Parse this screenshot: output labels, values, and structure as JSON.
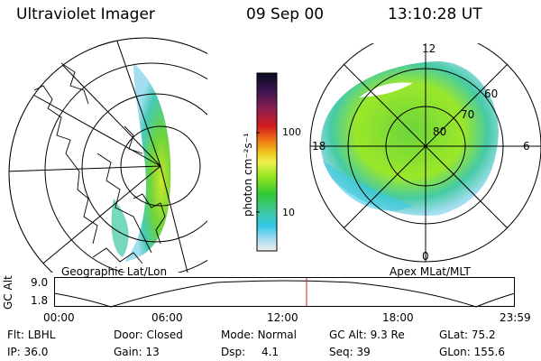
{
  "header": {
    "title": "Ultraviolet Imager",
    "date": "09 Sep 00",
    "time": "13:10:28 UT"
  },
  "colorbar": {
    "unit_label": "photon cm⁻²s⁻¹",
    "ticks": [
      "100",
      "10"
    ],
    "colors": [
      "#0a0a1e",
      "#3c1450",
      "#8c1e50",
      "#d21e1e",
      "#f07814",
      "#f0c81e",
      "#f0f050",
      "#96e61e",
      "#32c832",
      "#3cc8a0",
      "#32c8e6",
      "#a0dcf0",
      "#f0f0f0"
    ]
  },
  "polar_plot": {
    "lat_labels": [
      "80",
      "70",
      "60"
    ],
    "mlt_labels": {
      "top": "12",
      "left": "18",
      "right": "6",
      "bottom": "0"
    }
  },
  "map_labels": {
    "left": "Geographic Lat/Lon",
    "right": "Apex MLat/MLT"
  },
  "altitude_strip": {
    "axis_label": "GC Alt",
    "y_ticks": [
      "9.0",
      "1.8"
    ],
    "x_ticks": [
      "00:00",
      "06:00",
      "12:00",
      "18:00",
      "23:59"
    ],
    "marker_time": "13:10",
    "marker_color": "#d22020"
  },
  "status": {
    "flt": {
      "label": "Flt:",
      "value": "LBHL"
    },
    "ip": {
      "label": "IP:",
      "value": "36.0"
    },
    "door": {
      "label": "Door:",
      "value": "Closed"
    },
    "gain": {
      "label": "Gain:",
      "value": "13"
    },
    "mode": {
      "label": "Mode:",
      "value": "Normal"
    },
    "dsp": {
      "label": "Dsp:",
      "value": "4.1"
    },
    "gcalt": {
      "label": "GC Alt:",
      "value": "9.3 Re"
    },
    "seq": {
      "label": "Seq:",
      "value": "39"
    },
    "glat": {
      "label": "GLat:",
      "value": "75.2"
    },
    "glon": {
      "label": "GLon:",
      "value": "155.6"
    }
  }
}
